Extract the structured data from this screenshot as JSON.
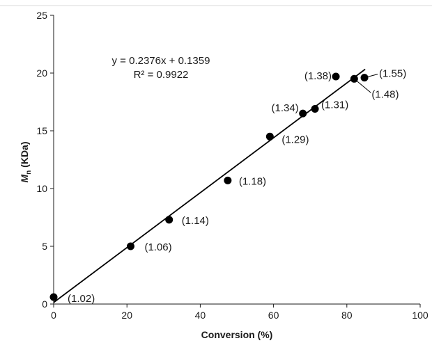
{
  "chart_data": {
    "type": "scatter",
    "title": "",
    "xlabel": "Conversion (%)",
    "ylabel_main": "M",
    "ylabel_sub": "n",
    "ylabel_unit": " (KDa)",
    "xlim": [
      0,
      100
    ],
    "ylim": [
      0,
      25
    ],
    "x_ticks": [
      0,
      20,
      40,
      60,
      80,
      100
    ],
    "y_ticks": [
      0,
      5,
      10,
      15,
      20,
      25
    ],
    "grid": false,
    "legend": "none",
    "points": [
      {
        "x": 0,
        "y": 0.6,
        "label": "(1.02)"
      },
      {
        "x": 21,
        "y": 5.0,
        "label": "(1.06)"
      },
      {
        "x": 31.5,
        "y": 7.3,
        "label": "(1.14)"
      },
      {
        "x": 47.5,
        "y": 10.7,
        "label": "(1.18)"
      },
      {
        "x": 59,
        "y": 14.5,
        "label": "(1.29)"
      },
      {
        "x": 68,
        "y": 16.5,
        "label": "(1.34)"
      },
      {
        "x": 71.3,
        "y": 16.9,
        "label": "(1.31)"
      },
      {
        "x": 77,
        "y": 19.7,
        "label": "(1.38)"
      },
      {
        "x": 82,
        "y": 19.5,
        "label": "(1.48)"
      },
      {
        "x": 84.8,
        "y": 19.6,
        "label": "(1.55)"
      }
    ],
    "trendline": {
      "slope": 0.2376,
      "intercept": 0.1359,
      "x_range": [
        0,
        85
      ],
      "equation": "y = 0.2376x + 0.1359",
      "r_squared": "R² = 0.9922"
    },
    "colors": {
      "marker": "#000000",
      "line": "#000000",
      "axis": "#1a1a1a"
    }
  }
}
